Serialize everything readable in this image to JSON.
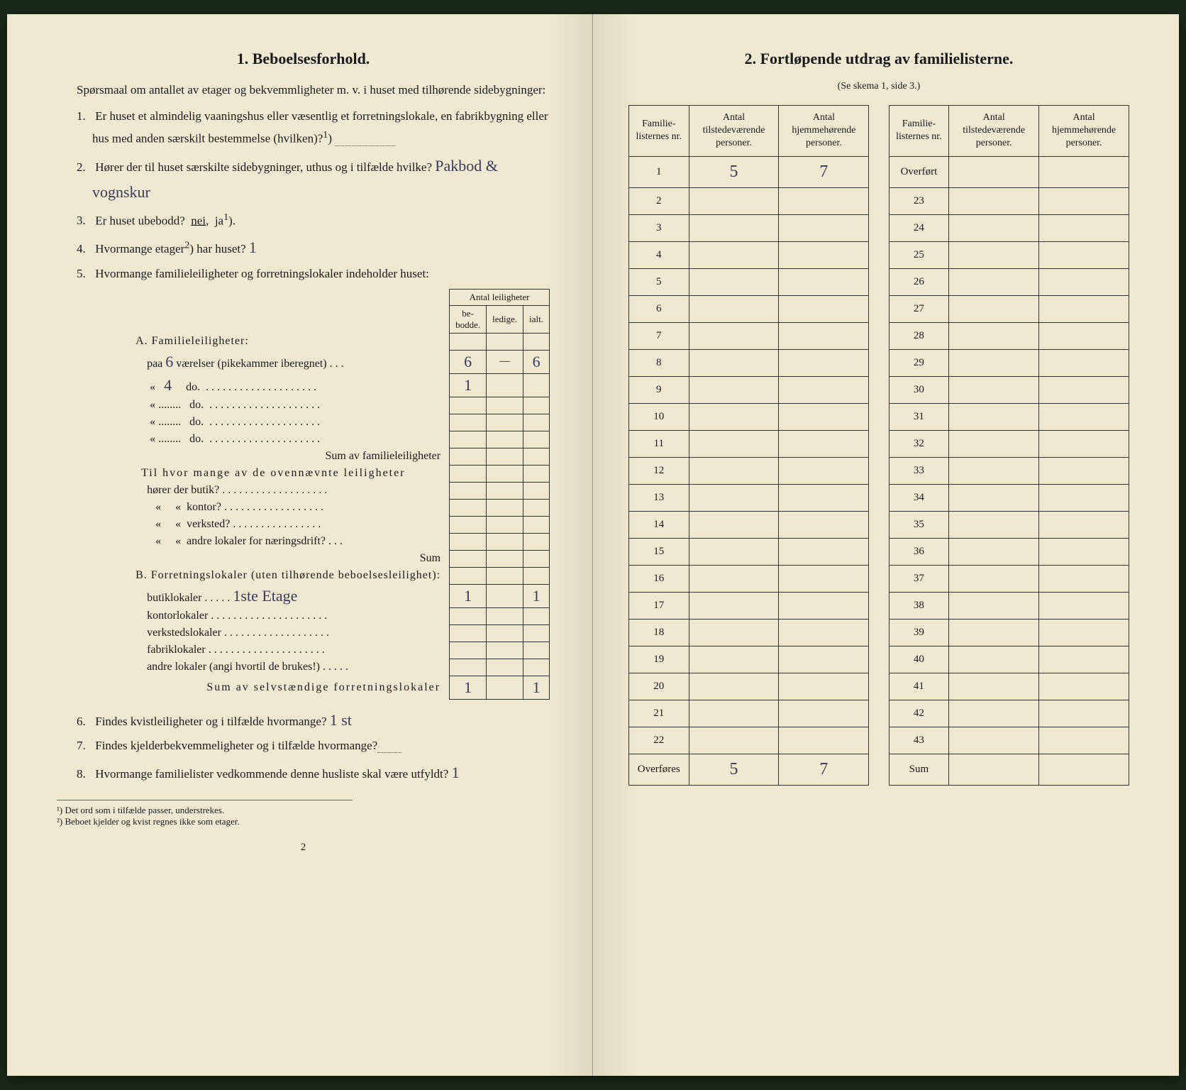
{
  "left": {
    "title": "1.   Beboelsesforhold.",
    "intro": "Spørsmaal om antallet av etager og bekvemmligheter m. v. i huset med tilhørende sidebygninger:",
    "q1": "Er huset et almindelig vaaningshus eller væsentlig et forretningslokale, en fabrikbygning eller hus med anden særskilt bestemmelse (hvilken)?",
    "q1_sup": "1",
    "q2a": "Hører der til huset særskilte sidebygninger, uthus og i tilfælde hvilke?",
    "q2_hand": "Pakbod & vognskur",
    "q3": "Er huset ubebodd?  nei,  ja",
    "q3_sup": "1",
    "q4": "Hvormange etager",
    "q4_sup": "2",
    "q4b": " har huset?",
    "q4_hand": "1",
    "q5": "Hvormange familieleiligheter og forretningslokaler indeholder huset:",
    "leil_head": "Antal leiligheter",
    "col_bebodde": "be-\nbodde.",
    "col_ledige": "ledige.",
    "col_ialt": "ialt.",
    "A_title": "A.  Familieleiligheter:",
    "A_paa": "paa",
    "A_rooms1": "6",
    "A_line1": "værelser (pikekammer iberegnet) . . .",
    "A_v1_bebodde": "6",
    "A_v1_ialt": "6",
    "A_rooms2": "4",
    "A_do": "do.",
    "A_v2_bebodde": "1",
    "A_sum": "Sum av familieleiligheter",
    "til_hvor": "Til hvor mange av de ovennævnte leiligheter",
    "butik": "hører der butik?",
    "kontor": "kontor?",
    "verksted": "verksted?",
    "andre": "andre lokaler for næringsdrift?",
    "sum": "Sum",
    "B_title": "B.  Forretningslokaler (uten tilhørende beboelsesleilighet):",
    "B_butik": "butiklokaler",
    "B_butik_hand": "1ste Etage",
    "B_butik_v1": "1",
    "B_butik_v3": "1",
    "B_kontor": "kontorlokaler",
    "B_verksted": "verkstedslokaler",
    "B_fabrik": "fabriklokaler",
    "B_andre": "andre lokaler (angi hvortil de brukes!)",
    "B_sum": "Sum av selvstændige forretningslokaler",
    "B_sum_v1": "1",
    "B_sum_v3": "1",
    "q6": "Findes kvistleiligheter og i tilfælde hvormange?",
    "q6_hand": "1 st",
    "q7": "Findes kjelderbekvemmeligheter og i tilfælde hvormange?",
    "q8": "Hvormange familielister vedkommende denne husliste skal være utfyldt?",
    "q8_hand": "1",
    "fn1": "¹) Det ord som i tilfælde passer, understrekes.",
    "fn2": "²) Beboet kjelder og kvist regnes ikke som etager.",
    "page_num": "2"
  },
  "right": {
    "title": "2.   Fortløpende utdrag av familielisterne.",
    "subtitle": "(Se skema 1, side 3.)",
    "h_nr": "Familie-listernes nr.",
    "h_tilstede": "Antal tilstedeværende personer.",
    "h_hjemme": "Antal hjemmehørende personer.",
    "overfort": "Overført",
    "overfores": "Overføres",
    "sum": "Sum",
    "rows_left": [
      {
        "nr": "1",
        "a": "5",
        "b": "7"
      },
      {
        "nr": "2",
        "a": "",
        "b": ""
      },
      {
        "nr": "3",
        "a": "",
        "b": ""
      },
      {
        "nr": "4",
        "a": "",
        "b": ""
      },
      {
        "nr": "5",
        "a": "",
        "b": ""
      },
      {
        "nr": "6",
        "a": "",
        "b": ""
      },
      {
        "nr": "7",
        "a": "",
        "b": ""
      },
      {
        "nr": "8",
        "a": "",
        "b": ""
      },
      {
        "nr": "9",
        "a": "",
        "b": ""
      },
      {
        "nr": "10",
        "a": "",
        "b": ""
      },
      {
        "nr": "11",
        "a": "",
        "b": ""
      },
      {
        "nr": "12",
        "a": "",
        "b": ""
      },
      {
        "nr": "13",
        "a": "",
        "b": ""
      },
      {
        "nr": "14",
        "a": "",
        "b": ""
      },
      {
        "nr": "15",
        "a": "",
        "b": ""
      },
      {
        "nr": "16",
        "a": "",
        "b": ""
      },
      {
        "nr": "17",
        "a": "",
        "b": ""
      },
      {
        "nr": "18",
        "a": "",
        "b": ""
      },
      {
        "nr": "19",
        "a": "",
        "b": ""
      },
      {
        "nr": "20",
        "a": "",
        "b": ""
      },
      {
        "nr": "21",
        "a": "",
        "b": ""
      },
      {
        "nr": "22",
        "a": "",
        "b": ""
      }
    ],
    "rows_right": [
      "23",
      "24",
      "25",
      "26",
      "27",
      "28",
      "29",
      "30",
      "31",
      "32",
      "33",
      "34",
      "35",
      "36",
      "37",
      "38",
      "39",
      "40",
      "41",
      "42",
      "43"
    ],
    "overfores_a": "5",
    "overfores_b": "7"
  }
}
